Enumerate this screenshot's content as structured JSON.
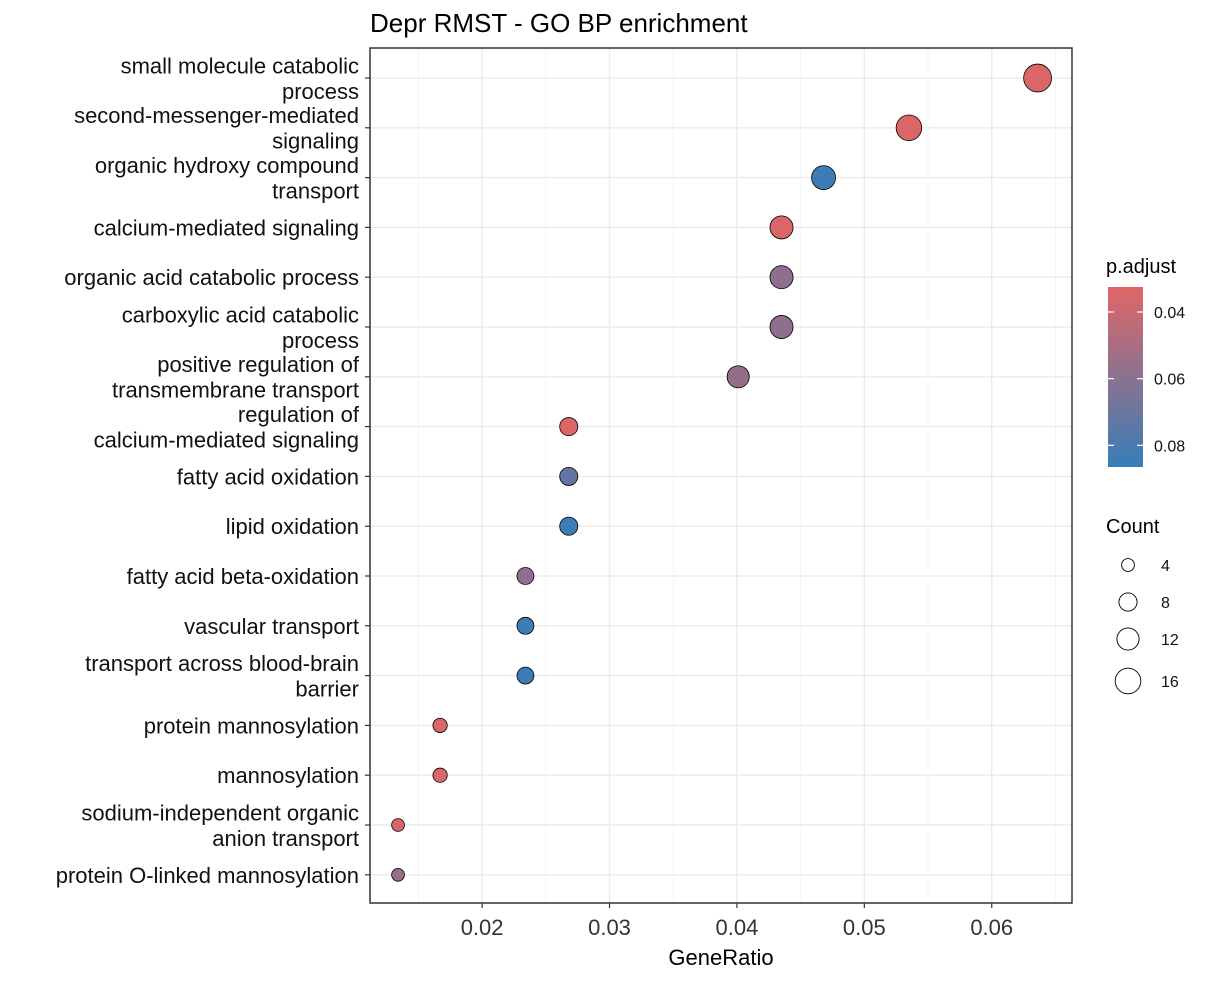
{
  "chart_data": {
    "type": "scatter",
    "title": "Depr RMST - GO BP enrichment",
    "xlabel": "GeneRatio",
    "ylabel": "",
    "xlim": [
      0.0112,
      0.0663
    ],
    "xticks": [
      0.02,
      0.03,
      0.04,
      0.05,
      0.06
    ],
    "xtick_labels": [
      "0.02",
      "0.03",
      "0.04",
      "0.05",
      "0.06"
    ],
    "grid": true,
    "legend_position": "right",
    "color_legend": {
      "title": "p.adjust",
      "low_color": "#E06666",
      "high_color": "#377EB8",
      "range": [
        0.0325,
        0.0865
      ],
      "ticks": [
        0.04,
        0.06,
        0.08
      ],
      "tick_labels": [
        "0.04",
        "0.06",
        "0.08"
      ]
    },
    "size_legend": {
      "title": "Count",
      "values": [
        4,
        8,
        12,
        16
      ],
      "labels": [
        "4",
        "8",
        "12",
        "16"
      ]
    },
    "points": [
      {
        "term": [
          "small molecule catabolic",
          "process"
        ],
        "gene_ratio": 0.0636,
        "count": 19,
        "p_adjust": 0.034
      },
      {
        "term": [
          "second-messenger-mediated",
          "signaling"
        ],
        "gene_ratio": 0.0535,
        "count": 16,
        "p_adjust": 0.034
      },
      {
        "term": [
          "organic hydroxy compound",
          "transport"
        ],
        "gene_ratio": 0.0468,
        "count": 14,
        "p_adjust": 0.085
      },
      {
        "term": [
          "calcium-mediated signaling"
        ],
        "gene_ratio": 0.0435,
        "count": 13,
        "p_adjust": 0.034
      },
      {
        "term": [
          "organic acid catabolic process"
        ],
        "gene_ratio": 0.0435,
        "count": 13,
        "p_adjust": 0.058
      },
      {
        "term": [
          "carboxylic acid catabolic",
          "process"
        ],
        "gene_ratio": 0.0435,
        "count": 13,
        "p_adjust": 0.058
      },
      {
        "term": [
          "positive regulation of",
          "transmembrane transport"
        ],
        "gene_ratio": 0.0401,
        "count": 12,
        "p_adjust": 0.056
      },
      {
        "term": [
          "regulation of",
          "calcium-mediated signaling"
        ],
        "gene_ratio": 0.0268,
        "count": 8,
        "p_adjust": 0.034
      },
      {
        "term": [
          "fatty acid oxidation"
        ],
        "gene_ratio": 0.0268,
        "count": 8,
        "p_adjust": 0.072
      },
      {
        "term": [
          "lipid oxidation"
        ],
        "gene_ratio": 0.0268,
        "count": 8,
        "p_adjust": 0.085
      },
      {
        "term": [
          "fatty acid beta-oxidation"
        ],
        "gene_ratio": 0.0234,
        "count": 7,
        "p_adjust": 0.058
      },
      {
        "term": [
          "vascular transport"
        ],
        "gene_ratio": 0.0234,
        "count": 7,
        "p_adjust": 0.085
      },
      {
        "term": [
          "transport across blood-brain",
          "barrier"
        ],
        "gene_ratio": 0.0234,
        "count": 7,
        "p_adjust": 0.085
      },
      {
        "term": [
          "protein mannosylation"
        ],
        "gene_ratio": 0.0167,
        "count": 5,
        "p_adjust": 0.034
      },
      {
        "term": [
          "mannosylation"
        ],
        "gene_ratio": 0.0167,
        "count": 5,
        "p_adjust": 0.034
      },
      {
        "term": [
          "sodium-independent organic",
          "anion transport"
        ],
        "gene_ratio": 0.0134,
        "count": 4,
        "p_adjust": 0.036
      },
      {
        "term": [
          "protein O-linked mannosylation"
        ],
        "gene_ratio": 0.0134,
        "count": 4,
        "p_adjust": 0.055
      }
    ]
  }
}
